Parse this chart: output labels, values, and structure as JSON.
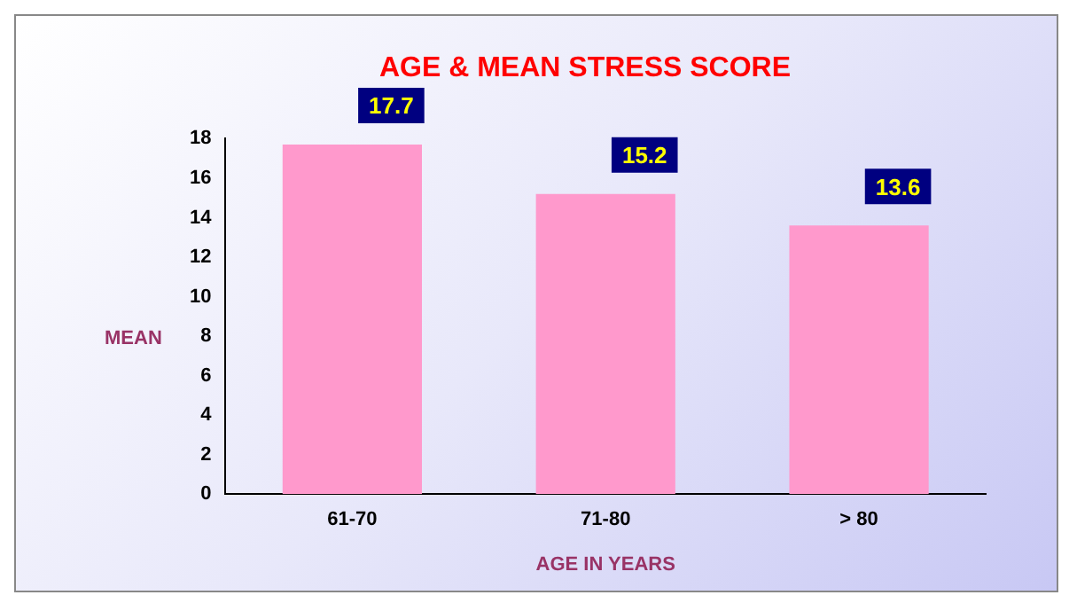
{
  "chart_data": {
    "type": "bar",
    "title": "AGE & MEAN STRESS SCORE",
    "xlabel": "AGE IN YEARS",
    "ylabel": "MEAN",
    "categories": [
      "61-70",
      "71-80",
      "> 80"
    ],
    "values": [
      17.7,
      15.2,
      13.6
    ],
    "color": "#ff99cc",
    "ylim": [
      0,
      18
    ],
    "yticks": [
      0,
      2,
      4,
      6,
      8,
      10,
      12,
      14,
      16,
      18
    ],
    "data_labels": true
  }
}
